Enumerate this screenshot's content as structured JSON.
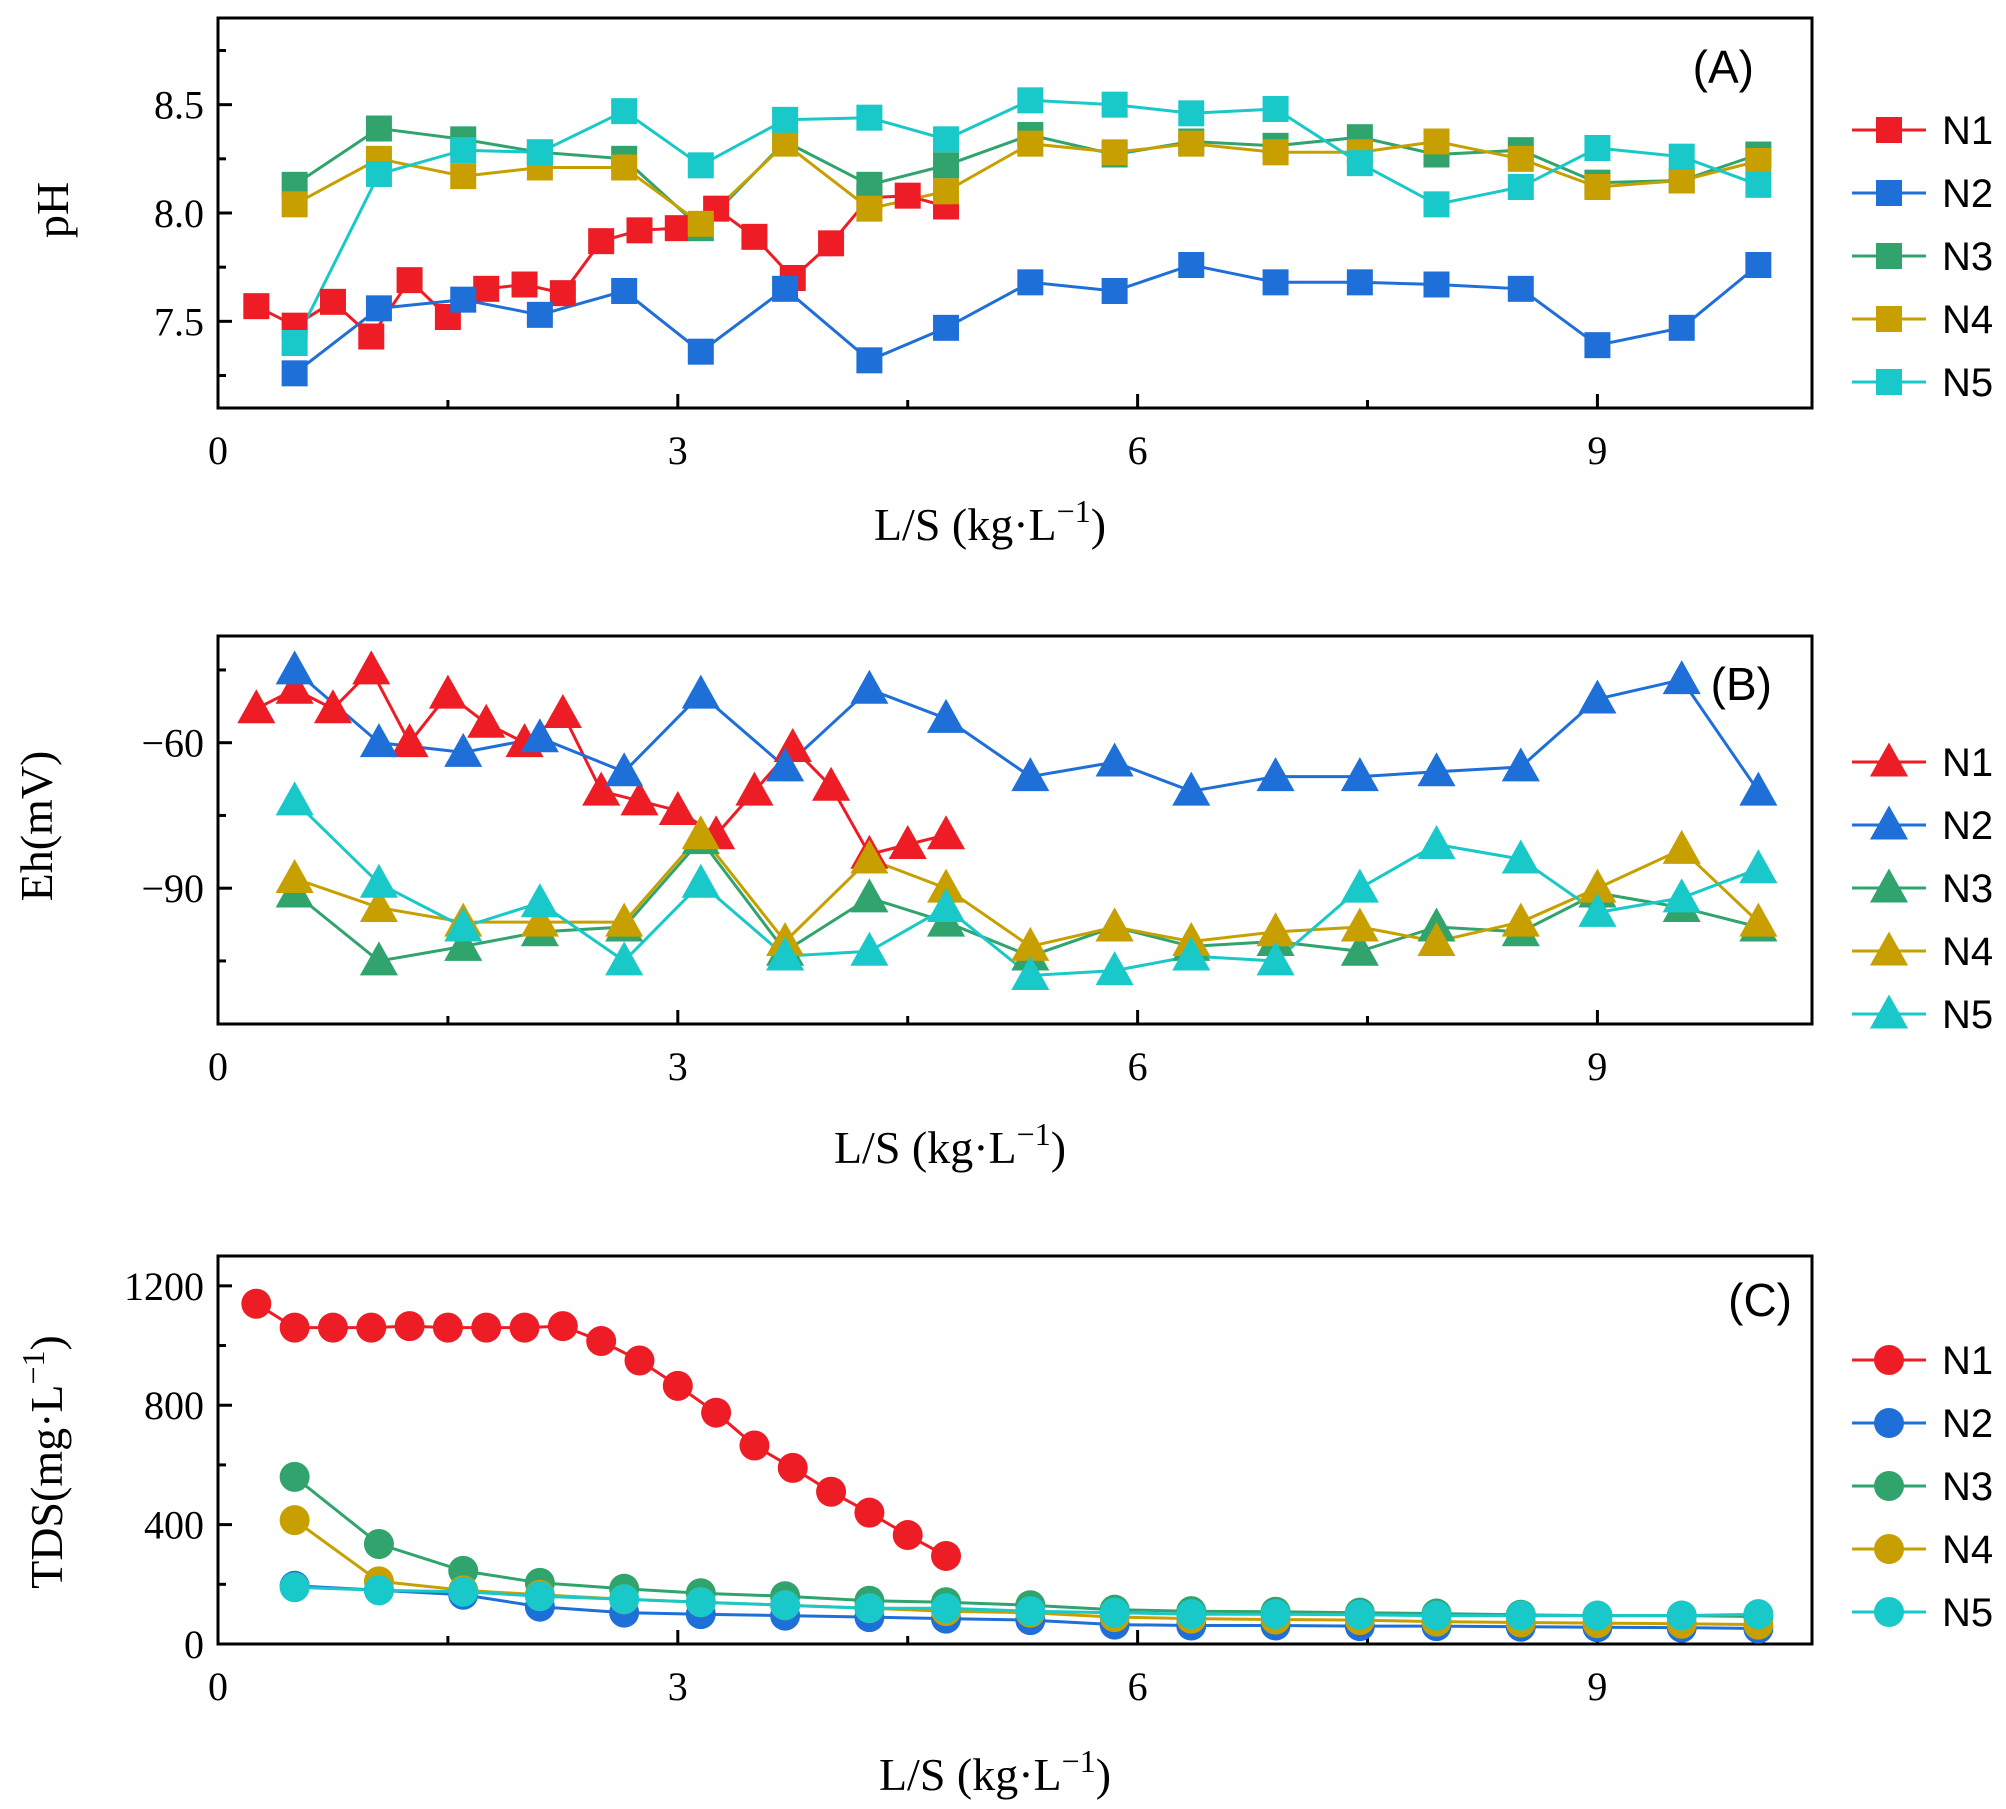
{
  "figure": {
    "panel_count": 3
  },
  "chart_data": [
    {
      "type": "line",
      "panel_label": "(A)",
      "title": "",
      "xlabel": "L/S (kg·L",
      "xlabel_sup": "−1",
      "xlabel_close": ")",
      "ylabel": "pH",
      "xlim": [
        0,
        10.4
      ],
      "ylim": [
        7.1,
        8.9
      ],
      "xticks": [
        0,
        3,
        6,
        9
      ],
      "yticks": [
        7.5,
        8.0,
        8.5
      ],
      "ytick_labels": [
        "7.5",
        "8.0",
        "8.5"
      ],
      "marker": "square",
      "legend_position": "right",
      "series": [
        {
          "name": "N1",
          "color": "#ee1c25",
          "x": [
            0.25,
            0.5,
            0.75,
            1.0,
            1.25,
            1.5,
            1.75,
            2.0,
            2.25,
            2.5,
            2.75,
            3.0,
            3.25,
            3.5,
            3.75,
            4.0,
            4.25,
            4.5,
            4.75
          ],
          "y": [
            7.57,
            7.48,
            7.59,
            7.43,
            7.69,
            7.52,
            7.65,
            7.67,
            7.63,
            7.87,
            7.92,
            7.93,
            8.02,
            7.89,
            7.7,
            7.86,
            8.07,
            8.08,
            8.03
          ]
        },
        {
          "name": "N2",
          "color": "#1f6fd8",
          "x": [
            0.5,
            1.05,
            1.6,
            2.1,
            2.65,
            3.15,
            3.7,
            4.25,
            4.75,
            5.3,
            5.85,
            6.35,
            6.9,
            7.45,
            7.95,
            8.5,
            9.0,
            9.55,
            10.05
          ],
          "y": [
            7.26,
            7.56,
            7.6,
            7.53,
            7.64,
            7.36,
            7.65,
            7.32,
            7.47,
            7.68,
            7.64,
            7.76,
            7.68,
            7.68,
            7.67,
            7.65,
            7.39,
            7.47,
            7.76
          ]
        },
        {
          "name": "N3",
          "color": "#30a46c",
          "x": [
            0.5,
            1.05,
            1.6,
            2.1,
            2.65,
            3.15,
            3.7,
            4.25,
            4.75,
            5.3,
            5.85,
            6.35,
            6.9,
            7.45,
            7.95,
            8.5,
            9.0,
            9.55,
            10.05
          ],
          "y": [
            8.13,
            8.39,
            8.34,
            8.28,
            8.25,
            7.93,
            8.33,
            8.13,
            8.22,
            8.36,
            8.27,
            8.33,
            8.31,
            8.35,
            8.27,
            8.29,
            8.14,
            8.15,
            8.27
          ]
        },
        {
          "name": "N4",
          "color": "#c7a000",
          "x": [
            0.5,
            1.05,
            1.6,
            2.1,
            2.65,
            3.15,
            3.7,
            4.25,
            4.75,
            5.3,
            5.85,
            6.35,
            6.9,
            7.45,
            7.95,
            8.5,
            9.0,
            9.55,
            10.05
          ],
          "y": [
            8.04,
            8.25,
            8.17,
            8.21,
            8.21,
            7.95,
            8.32,
            8.02,
            8.1,
            8.32,
            8.28,
            8.32,
            8.28,
            8.28,
            8.33,
            8.25,
            8.12,
            8.15,
            8.24
          ]
        },
        {
          "name": "N5",
          "color": "#19c8c8",
          "x": [
            0.5,
            1.05,
            1.6,
            2.1,
            2.65,
            3.15,
            3.7,
            4.25,
            4.75,
            5.3,
            5.85,
            6.35,
            6.9,
            7.45,
            7.95,
            8.5,
            9.0,
            9.55,
            10.05
          ],
          "y": [
            7.4,
            8.18,
            8.29,
            8.28,
            8.47,
            8.22,
            8.43,
            8.44,
            8.34,
            8.52,
            8.5,
            8.46,
            8.48,
            8.23,
            8.04,
            8.12,
            8.3,
            8.26,
            8.13
          ]
        }
      ]
    },
    {
      "type": "line",
      "panel_label": "(B)",
      "title": "",
      "xlabel": "L/S (kg·L",
      "xlabel_sup": "−1",
      "xlabel_close": ")",
      "ylabel": "Eh(mV)",
      "xlim": [
        0,
        10.4
      ],
      "ylim": [
        -118,
        -38
      ],
      "xticks": [
        0,
        3,
        6,
        9
      ],
      "yticks": [
        -60,
        -90
      ],
      "ytick_labels": [
        "−60",
        "−90"
      ],
      "marker": "triangle",
      "legend_position": "right",
      "series": [
        {
          "name": "N1",
          "color": "#ee1c25",
          "x": [
            0.25,
            0.5,
            0.75,
            1.0,
            1.25,
            1.5,
            1.75,
            2.0,
            2.25,
            2.5,
            2.75,
            3.0,
            3.25,
            3.5,
            3.75,
            4.0,
            4.25,
            4.5,
            4.75
          ],
          "y": [
            -53,
            -49,
            -53,
            -45,
            -60,
            -50,
            -56,
            -60,
            -54,
            -70,
            -72,
            -74,
            -79,
            -70,
            -61,
            -69,
            -83,
            -81,
            -79
          ]
        },
        {
          "name": "N2",
          "color": "#1f6fd8",
          "x": [
            0.5,
            1.05,
            1.6,
            2.1,
            2.65,
            3.15,
            3.7,
            4.25,
            4.75,
            5.3,
            5.85,
            6.35,
            6.9,
            7.45,
            7.95,
            8.5,
            9.0,
            9.55,
            10.05
          ],
          "y": [
            -45,
            -60,
            -62,
            -59,
            -66,
            -50,
            -65,
            -49,
            -55,
            -67,
            -64,
            -70,
            -67,
            -67,
            -66,
            -65,
            -51,
            -47,
            -70
          ]
        },
        {
          "name": "N3",
          "color": "#30a46c",
          "x": [
            0.5,
            1.05,
            1.6,
            2.1,
            2.65,
            3.15,
            3.7,
            4.25,
            4.75,
            5.3,
            5.85,
            6.35,
            6.9,
            7.45,
            7.95,
            8.5,
            9.0,
            9.55,
            10.05
          ],
          "y": [
            -91,
            -105,
            -102,
            -99,
            -98,
            -80,
            -103,
            -92,
            -97,
            -104,
            -98,
            -102,
            -101,
            -103,
            -98,
            -99,
            -91,
            -94,
            -98
          ]
        },
        {
          "name": "N4",
          "color": "#c7a000",
          "x": [
            0.5,
            1.05,
            1.6,
            2.1,
            2.65,
            3.15,
            3.7,
            4.25,
            4.75,
            5.3,
            5.85,
            6.35,
            6.9,
            7.45,
            7.95,
            8.5,
            9.0,
            9.55,
            10.05
          ],
          "y": [
            -88,
            -94,
            -97,
            -97,
            -97,
            -79,
            -101,
            -84,
            -90,
            -102,
            -98,
            -101,
            -99,
            -98,
            -101,
            -97,
            -90,
            -82,
            -97
          ]
        },
        {
          "name": "N5",
          "color": "#19c8c8",
          "x": [
            0.5,
            1.05,
            1.6,
            2.1,
            2.65,
            3.15,
            3.7,
            4.25,
            4.75,
            5.3,
            5.85,
            6.35,
            6.9,
            7.45,
            7.95,
            8.5,
            9.0,
            9.55,
            10.05
          ],
          "y": [
            -72,
            -89,
            -98,
            -93,
            -105,
            -89,
            -104,
            -103,
            -94,
            -108,
            -107,
            -104,
            -105,
            -90,
            -81,
            -84,
            -95,
            -92,
            -86
          ]
        }
      ]
    },
    {
      "type": "line",
      "panel_label": "(C)",
      "title": "",
      "xlabel": "L/S (kg·L",
      "xlabel_sup": "−1",
      "xlabel_close": ")",
      "ylabel": "TDS(mg·L",
      "ylabel_sup": "−1",
      "ylabel_close": ")",
      "xlim": [
        0,
        10.4
      ],
      "ylim": [
        0,
        1300
      ],
      "xticks": [
        0,
        3,
        6,
        9
      ],
      "yticks": [
        0,
        400,
        800,
        1200
      ],
      "ytick_labels": [
        "0",
        "400",
        "800",
        "1200"
      ],
      "marker": "circle",
      "legend_position": "right",
      "series": [
        {
          "name": "N1",
          "color": "#ee1c25",
          "x": [
            0.25,
            0.5,
            0.75,
            1.0,
            1.25,
            1.5,
            1.75,
            2.0,
            2.25,
            2.5,
            2.75,
            3.0,
            3.25,
            3.5,
            3.75,
            4.0,
            4.25,
            4.5,
            4.75
          ],
          "y": [
            1140,
            1060,
            1060,
            1060,
            1065,
            1060,
            1060,
            1060,
            1065,
            1015,
            950,
            865,
            775,
            665,
            590,
            510,
            440,
            365,
            295
          ]
        },
        {
          "name": "N2",
          "color": "#1f6fd8",
          "x": [
            0.5,
            1.05,
            1.6,
            2.1,
            2.65,
            3.15,
            3.7,
            4.25,
            4.75,
            5.3,
            5.85,
            6.35,
            6.9,
            7.45,
            7.95,
            8.5,
            9.0,
            9.55,
            10.05
          ],
          "y": [
            195,
            180,
            165,
            125,
            105,
            100,
            95,
            90,
            85,
            80,
            65,
            62,
            62,
            60,
            60,
            58,
            56,
            55,
            52
          ]
        },
        {
          "name": "N3",
          "color": "#30a46c",
          "x": [
            0.5,
            1.05,
            1.6,
            2.1,
            2.65,
            3.15,
            3.7,
            4.25,
            4.75,
            5.3,
            5.85,
            6.35,
            6.9,
            7.45,
            7.95,
            8.5,
            9.0,
            9.55,
            10.05
          ],
          "y": [
            560,
            335,
            245,
            205,
            185,
            170,
            160,
            145,
            140,
            130,
            115,
            110,
            108,
            105,
            102,
            98,
            95,
            95,
            92
          ]
        },
        {
          "name": "N4",
          "color": "#c7a000",
          "x": [
            0.5,
            1.05,
            1.6,
            2.1,
            2.65,
            3.15,
            3.7,
            4.25,
            4.75,
            5.3,
            5.85,
            6.35,
            6.9,
            7.45,
            7.95,
            8.5,
            9.0,
            9.55,
            10.05
          ],
          "y": [
            415,
            210,
            180,
            165,
            150,
            140,
            130,
            120,
            110,
            105,
            90,
            85,
            82,
            80,
            75,
            72,
            70,
            68,
            65
          ]
        },
        {
          "name": "N5",
          "color": "#19c8c8",
          "x": [
            0.5,
            1.05,
            1.6,
            2.1,
            2.65,
            3.15,
            3.7,
            4.25,
            4.75,
            5.3,
            5.85,
            6.35,
            6.9,
            7.45,
            7.95,
            8.5,
            9.0,
            9.55,
            10.05
          ],
          "y": [
            190,
            180,
            175,
            160,
            150,
            140,
            130,
            120,
            120,
            110,
            105,
            100,
            100,
            98,
            95,
            95,
            95,
            95,
            100
          ]
        }
      ]
    }
  ]
}
